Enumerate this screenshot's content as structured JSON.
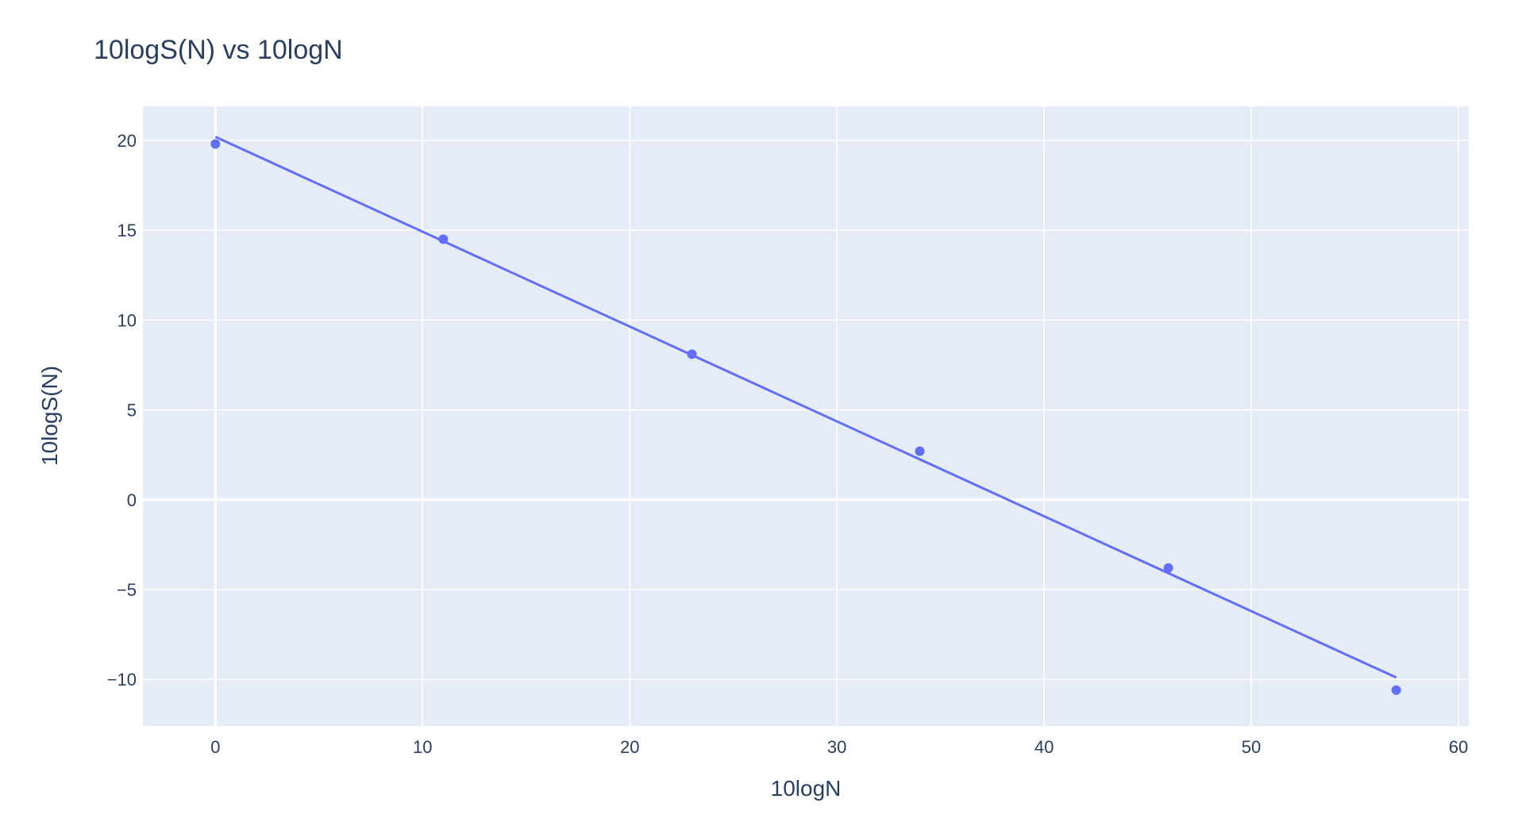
{
  "chart_data": {
    "type": "scatter",
    "title": "10logS(N) vs 10logN",
    "xlabel": "10logN",
    "ylabel": "10logS(N)",
    "xlim": [
      -3.5,
      60.5
    ],
    "ylim": [
      -12.6,
      21.9
    ],
    "x_ticks": [
      0,
      10,
      20,
      30,
      40,
      50,
      60
    ],
    "y_ticks": [
      -10,
      -5,
      0,
      5,
      10,
      15,
      20
    ],
    "x_tick_labels": [
      "0",
      "10",
      "20",
      "30",
      "40",
      "50",
      "60"
    ],
    "y_tick_labels": [
      "−10",
      "−5",
      "0",
      "5",
      "10",
      "15",
      "20"
    ],
    "grid": true,
    "legend": false,
    "series": [
      {
        "mode": "markers",
        "color": "#636efa",
        "x": [
          0,
          11,
          23,
          34,
          46,
          57
        ],
        "y": [
          19.8,
          14.5,
          8.1,
          2.7,
          -3.8,
          -10.6
        ]
      },
      {
        "mode": "line",
        "color": "#636efa",
        "x": [
          0,
          57
        ],
        "y": [
          20.2,
          -9.9
        ]
      }
    ],
    "colors": {
      "plot_background": "#e5ecf6",
      "grid": "#ffffff",
      "text": "#2a3f5f",
      "series": "#636efa"
    }
  }
}
